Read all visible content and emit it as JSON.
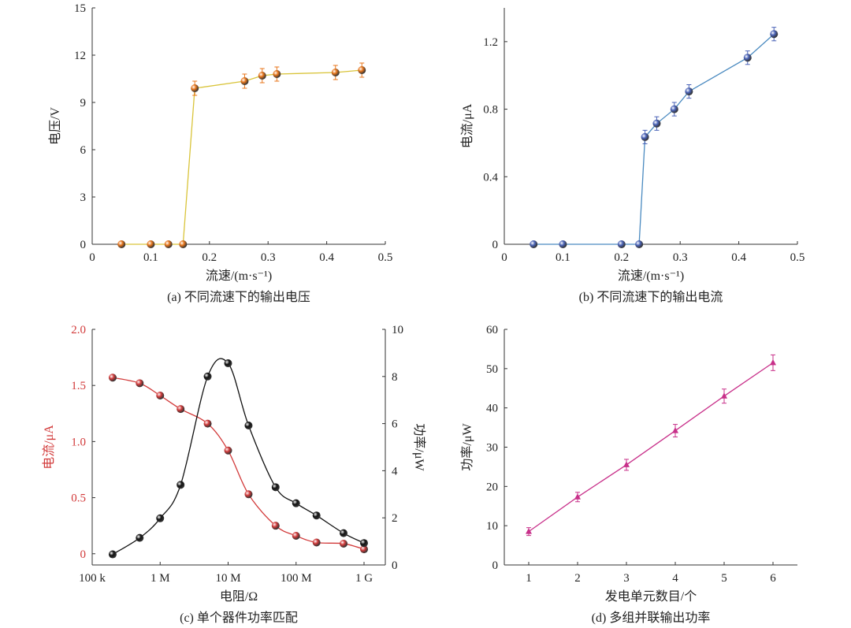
{
  "chart_data": [
    {
      "id": "a",
      "type": "line",
      "caption": "(a) 不同流速下的输出电压",
      "xlabel": "流速/(m·s⁻¹)",
      "ylabel": "电压/V",
      "xlim": [
        0,
        0.5
      ],
      "ylim": [
        0,
        15
      ],
      "xticks": [
        0,
        0.1,
        0.2,
        0.3,
        0.4,
        0.5
      ],
      "xtick_labels": [
        "0",
        "0.1",
        "0.2",
        "0.3",
        "0.4",
        "0.5"
      ],
      "yticks": [
        0,
        3,
        6,
        9,
        12,
        15
      ],
      "ytick_labels": [
        "0",
        "3",
        "6",
        "9",
        "12",
        "15"
      ],
      "colors": {
        "line": "#d9c43a",
        "marker": "#e8751a"
      },
      "series": [
        {
          "x": [
            0.05,
            0.1,
            0.13,
            0.155,
            0.175,
            0.26,
            0.29,
            0.315,
            0.415,
            0.46
          ],
          "y": [
            0,
            0,
            0,
            0,
            9.9,
            10.35,
            10.7,
            10.8,
            10.9,
            11.05
          ],
          "err": [
            0,
            0,
            0,
            0,
            0.45,
            0.45,
            0.45,
            0.45,
            0.45,
            0.45
          ]
        }
      ]
    },
    {
      "id": "b",
      "type": "line",
      "caption": "(b) 不同流速下的输出电流",
      "xlabel": "流速/(m·s⁻¹)",
      "ylabel": "电流/μA",
      "xlim": [
        0,
        0.5
      ],
      "ylim": [
        0,
        1.4
      ],
      "xticks": [
        0,
        0.1,
        0.2,
        0.3,
        0.4,
        0.5
      ],
      "xtick_labels": [
        "0",
        "0.1",
        "0.2",
        "0.3",
        "0.4",
        "0.5"
      ],
      "yticks": [
        0,
        0.4,
        0.8,
        1.2
      ],
      "ytick_labels": [
        "0",
        "0.4",
        "0.8",
        "1.2"
      ],
      "colors": {
        "line": "#4a8ac0",
        "marker": "#4a63b8"
      },
      "series": [
        {
          "x": [
            0.05,
            0.1,
            0.2,
            0.23,
            0.24,
            0.26,
            0.29,
            0.315,
            0.415,
            0.46
          ],
          "y": [
            0,
            0,
            0,
            0,
            0.635,
            0.715,
            0.8,
            0.905,
            1.105,
            1.245
          ],
          "err": [
            0,
            0,
            0,
            0,
            0.04,
            0.04,
            0.04,
            0.04,
            0.04,
            0.04
          ]
        }
      ]
    },
    {
      "id": "c",
      "type": "line",
      "caption": "(c) 单个器件功率匹配",
      "xlabel": "电阻/Ω",
      "ylabel_left": "电流/μA",
      "ylabel_right": "功率/μW",
      "xscale": "log",
      "xlim": [
        100000,
        1000000000
      ],
      "ylim_left": [
        -0.1,
        2.0
      ],
      "ylim_right": [
        0,
        10
      ],
      "xticks": [
        100000,
        1000000,
        10000000,
        100000000,
        1000000000
      ],
      "xtick_labels": [
        "100 k",
        "1 M",
        "10 M",
        "100 M",
        "1 G"
      ],
      "yticks_left": [
        0,
        0.5,
        1.0,
        1.5,
        2.0
      ],
      "ytick_labels_left": [
        "0",
        "0.5",
        "1.0",
        "1.5",
        "2.0"
      ],
      "yticks_right": [
        0,
        2,
        4,
        6,
        8,
        10
      ],
      "ytick_labels_right": [
        "0",
        "2",
        "4",
        "6",
        "8",
        "10"
      ],
      "colors": {
        "current": "#d23a3a",
        "power": "#111111"
      },
      "series": [
        {
          "axis": "left",
          "x": [
            200000,
            500000,
            1000000,
            2000000,
            5000000,
            10000000,
            20000000,
            50000000,
            100000000,
            200000000,
            500000000,
            1000000000
          ],
          "y": [
            1.57,
            1.52,
            1.41,
            1.29,
            1.16,
            0.92,
            0.53,
            0.25,
            0.16,
            0.1,
            0.09,
            0.04
          ]
        },
        {
          "axis": "right",
          "x": [
            200000,
            500000,
            1000000,
            2000000,
            5000000,
            10000000,
            20000000,
            50000000,
            100000000,
            200000000,
            500000000,
            1000000000
          ],
          "y": [
            0.45,
            1.15,
            1.98,
            3.4,
            8.0,
            8.56,
            5.92,
            3.3,
            2.62,
            2.1,
            1.35,
            0.93
          ]
        }
      ]
    },
    {
      "id": "d",
      "type": "line",
      "caption": "(d) 多组并联输出功率",
      "xlabel": "发电单元数目/个",
      "ylabel": "功率/μW",
      "xlim": [
        0.5,
        6.5
      ],
      "ylim": [
        0,
        60
      ],
      "xticks": [
        1,
        2,
        3,
        4,
        5,
        6
      ],
      "xtick_labels": [
        "1",
        "2",
        "3",
        "4",
        "5",
        "6"
      ],
      "yticks": [
        0,
        10,
        20,
        30,
        40,
        50,
        60
      ],
      "ytick_labels": [
        "0",
        "10",
        "20",
        "30",
        "40",
        "50",
        "60"
      ],
      "colors": {
        "line": "#c8308a",
        "marker": "#c8308a"
      },
      "series": [
        {
          "x": [
            1,
            2,
            3,
            4,
            5,
            6
          ],
          "y": [
            8.5,
            17.3,
            25.5,
            34.2,
            43.0,
            51.5
          ],
          "err": [
            1.0,
            1.2,
            1.4,
            1.6,
            1.8,
            2.0
          ]
        }
      ]
    }
  ]
}
